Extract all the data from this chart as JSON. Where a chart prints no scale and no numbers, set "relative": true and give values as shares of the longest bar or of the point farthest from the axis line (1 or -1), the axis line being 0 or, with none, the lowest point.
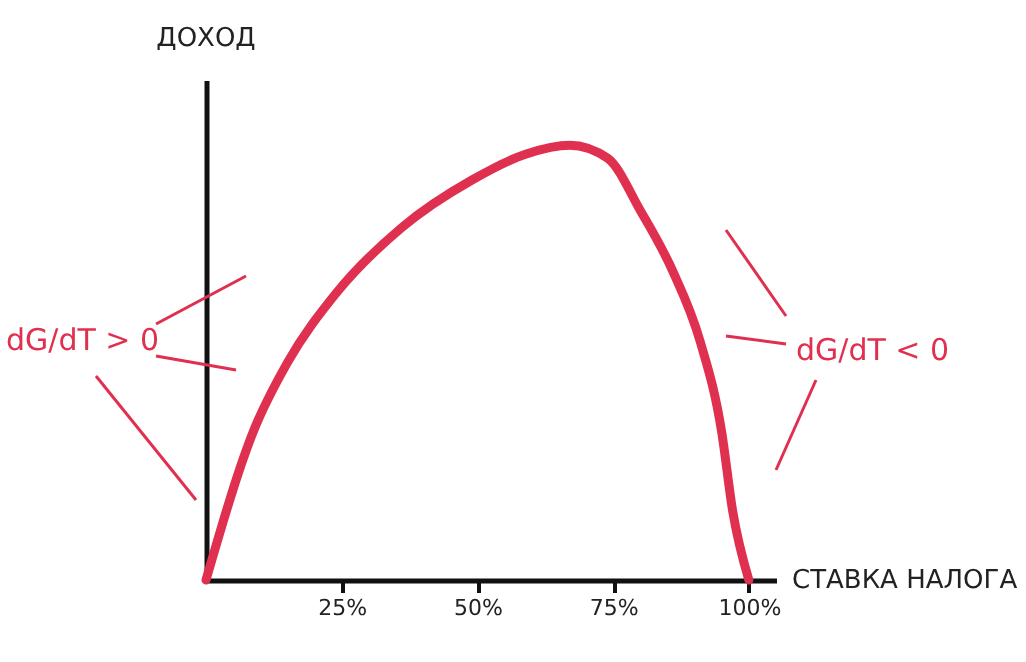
{
  "chart_data": {
    "type": "line",
    "xlabel": "СТАВКА НАЛОГА",
    "ylabel": "ДОХОД",
    "relative": true,
    "x": [
      0,
      9,
      15,
      24,
      36,
      49,
      59,
      67,
      74,
      80,
      86,
      91,
      95,
      97,
      100
    ],
    "series": [
      {
        "color": "#e0304f",
        "values": [
          0,
          0.35,
          0.5,
          0.66,
          0.81,
          0.92,
          0.98,
          1.0,
          0.97,
          0.85,
          0.71,
          0.55,
          0.34,
          0.16,
          0
        ]
      }
    ],
    "xlim": [
      0,
      105
    ],
    "xticks": [
      {
        "value": 25,
        "label": "25%"
      },
      {
        "value": 50,
        "label": "50%"
      },
      {
        "value": 75,
        "label": "75%"
      },
      {
        "value": 100,
        "label": "100%"
      }
    ],
    "annotations": [
      "dG/dT > 0",
      "dG/dT < 0"
    ],
    "grid": false,
    "marker": "none",
    "line_style": "solid"
  }
}
